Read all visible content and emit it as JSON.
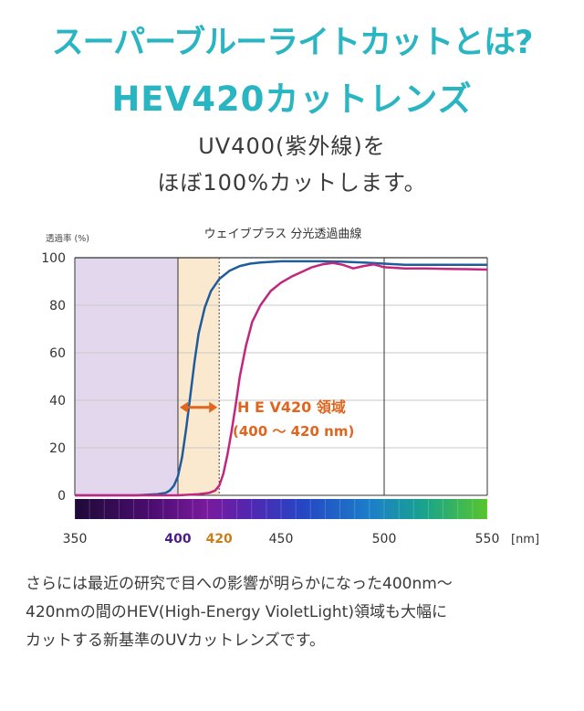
{
  "header": {
    "title_line1": "スーパーブルーライトカットとは?",
    "title_line2": "HEV420カットレンズ",
    "subtitle_line1": "UV400(紫外線)を",
    "subtitle_line2": "ほぼ100%カットします。"
  },
  "chart_data": {
    "type": "line",
    "title": "ウェイブプラス 分光透過曲線",
    "ylabel": "透過率 (%)",
    "xunit": "[nm]",
    "xlim": [
      350,
      550
    ],
    "ylim": [
      0,
      100
    ],
    "yticks": [
      "0",
      "20",
      "40",
      "60",
      "80",
      "100"
    ],
    "xticks": [
      {
        "value": 350,
        "label": "350",
        "color": "#333333"
      },
      {
        "value": 400,
        "label": "400",
        "color": "#4b1d86"
      },
      {
        "value": 420,
        "label": "420",
        "color": "#c8801c"
      },
      {
        "value": 450,
        "label": "450",
        "color": "#333333"
      },
      {
        "value": 500,
        "label": "500",
        "color": "#333333"
      },
      {
        "value": 550,
        "label": "550",
        "color": "#333333"
      }
    ],
    "regions": [
      {
        "from": 350,
        "to": 400,
        "color": "#e2d7ec"
      },
      {
        "from": 400,
        "to": 420,
        "color": "#fbe9cf"
      }
    ],
    "annotation": {
      "line1": "H E V420 領域",
      "line2": "(400 ～ 420 nm)",
      "color": "#e0661f",
      "from": 400,
      "to": 420,
      "y": 37
    },
    "series": [
      {
        "color": "#1f5c9c",
        "x": [
          350,
          380,
          390,
          394,
          396,
          398,
          400,
          402,
          404,
          406,
          408,
          410,
          413,
          416,
          420,
          425,
          430,
          435,
          440,
          450,
          460,
          470,
          480,
          490,
          500,
          510,
          520,
          530,
          540,
          550
        ],
        "y": [
          0,
          0,
          0.5,
          1,
          2,
          4,
          8,
          16,
          28,
          42,
          56,
          68,
          79,
          86,
          91,
          94.5,
          96.5,
          97.5,
          98,
          98.5,
          98.5,
          98.5,
          98.3,
          98,
          97.5,
          97,
          97,
          97,
          97,
          97
        ]
      },
      {
        "color": "#c1277f",
        "x": [
          350,
          400,
          410,
          415,
          418,
          420,
          422,
          424,
          426,
          428,
          430,
          433,
          436,
          440,
          445,
          450,
          455,
          460,
          465,
          470,
          475,
          480,
          485,
          490,
          495,
          500,
          510,
          520,
          530,
          540,
          550
        ],
        "y": [
          0,
          0,
          0.5,
          1,
          2,
          4,
          9,
          17,
          27,
          38,
          50,
          63,
          73,
          80,
          86,
          89.5,
          92,
          94,
          96,
          97.2,
          97.8,
          97,
          95.5,
          96.5,
          97.2,
          96,
          95.5,
          95.5,
          95.3,
          95.2,
          95
        ]
      }
    ]
  },
  "description": {
    "line1": "さらには最近の研究で目への影響が明らかになった400nm～",
    "line2": "420nmの間のHEV(High-Energy VioletLight)領域も大幅に",
    "line3": "カットする新基準のUVカットレンズです。"
  }
}
